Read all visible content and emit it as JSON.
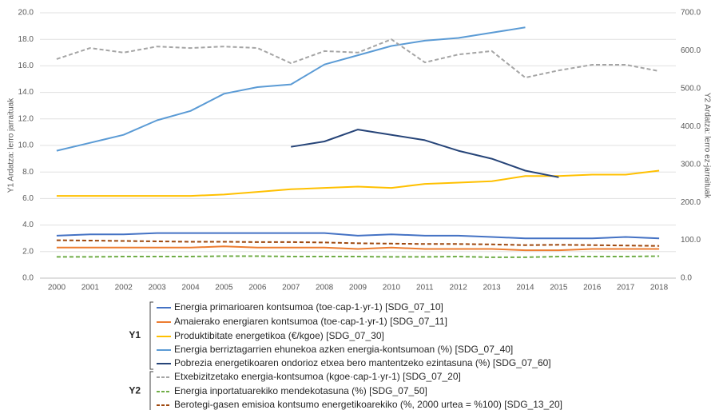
{
  "chart_data": {
    "type": "line",
    "y_label": "Y1 Ardatza: lerro jarraituak",
    "y2_label": "Y2 Ardatza: lerro ez-jarraituak",
    "categories": [
      "2000",
      "2001",
      "2002",
      "2003",
      "2004",
      "2005",
      "2006",
      "2007",
      "2008",
      "2009",
      "2010",
      "2011",
      "2012",
      "2013",
      "2014",
      "2015",
      "2016",
      "2017",
      "2018"
    ],
    "ylim": [
      0,
      20
    ],
    "yticks": [
      {
        "value": 0,
        "label": "0.0"
      },
      {
        "value": 2,
        "label": "2.0"
      },
      {
        "value": 4,
        "label": "4.0"
      },
      {
        "value": 6,
        "label": "6.0"
      },
      {
        "value": 8,
        "label": "8.0"
      },
      {
        "value": 10,
        "label": "10.0"
      },
      {
        "value": 12,
        "label": "12.0"
      },
      {
        "value": 14,
        "label": "14.0"
      },
      {
        "value": 16,
        "label": "16.0"
      },
      {
        "value": 18,
        "label": "18.0"
      },
      {
        "value": 20,
        "label": "20.0"
      }
    ],
    "y2lim": [
      0,
      700
    ],
    "y2ticks": [
      {
        "value": 0,
        "label": "0.0"
      },
      {
        "value": 100,
        "label": "100.0"
      },
      {
        "value": 200,
        "label": "200.0"
      },
      {
        "value": 300,
        "label": "300.0"
      },
      {
        "value": 400,
        "label": "400.0"
      },
      {
        "value": 500,
        "label": "500.0"
      },
      {
        "value": 600,
        "label": "600.0"
      },
      {
        "value": 700,
        "label": "700.0"
      }
    ],
    "grid": true,
    "legend_groups": [
      "Y1",
      "Y2"
    ],
    "series": [
      {
        "name": "Energia primarioaren kontsumoa (toe·cap-1·yr-1) [SDG_07_10]",
        "color": "#4472c4",
        "values": [
          3.2,
          3.3,
          3.3,
          3.4,
          3.4,
          3.4,
          3.4,
          3.4,
          3.4,
          3.2,
          3.3,
          3.2,
          3.2,
          3.1,
          3.0,
          3.0,
          3.0,
          3.1,
          3.0
        ]
      },
      {
        "name": "Amaierako energiaren kontsumoa (toe·cap-1·yr-1) [SDG_07_11]",
        "color": "#ed7d31",
        "values": [
          2.3,
          2.3,
          2.3,
          2.3,
          2.3,
          2.4,
          2.3,
          2.3,
          2.3,
          2.2,
          2.3,
          2.2,
          2.2,
          2.2,
          2.1,
          2.1,
          2.2,
          2.2,
          2.2
        ]
      },
      {
        "name": "Produktibitate energetikoa (€/kgoe) [SDG_07_30]",
        "color": "#ffc000",
        "values": [
          6.2,
          6.2,
          6.2,
          6.2,
          6.2,
          6.3,
          6.5,
          6.7,
          6.8,
          6.9,
          6.8,
          7.1,
          7.2,
          7.3,
          7.7,
          7.7,
          7.8,
          7.8,
          8.1
        ]
      },
      {
        "name": "Energia berriztagarrien ehunekoa azken energia-kontsumoan (%) [SDG_07_40]",
        "color": "#5b9bd5",
        "values": [
          9.6,
          10.2,
          10.8,
          11.9,
          12.6,
          13.9,
          14.4,
          14.6,
          16.1,
          16.8,
          17.5,
          17.9,
          18.1,
          18.5,
          18.9,
          null,
          null,
          null,
          null
        ]
      },
      {
        "name": "Pobrezia energetikoaren ondorioz etxea bero mantentzeko ezintasuna (%) [SDG_07_60]",
        "color": "#264478",
        "values": [
          null,
          null,
          null,
          null,
          null,
          null,
          null,
          9.9,
          10.3,
          11.2,
          10.8,
          10.4,
          9.6,
          9.0,
          8.1,
          7.6,
          null,
          null,
          null
        ]
      },
      {
        "name": "Etxebizitzetako energia-kontsumoa (kgoe·cap-1·yr-1) [SDG_07_20]",
        "color": "#a5a5a5",
        "dashed": true,
        "axis": "y2",
        "values": [
          578,
          607,
          595,
          611,
          607,
          611,
          607,
          567,
          599,
          595,
          630,
          569,
          590,
          599,
          529,
          548,
          563,
          563,
          546
        ]
      },
      {
        "name": "Energia inportatuarekiko mendekotasuna (%) [SDG_07_50]",
        "color": "#70ad47",
        "dashed": true,
        "axis": "y2",
        "values": [
          56,
          56,
          57,
          57,
          57,
          58,
          58,
          57,
          57,
          57,
          56,
          56,
          57,
          55,
          55,
          57,
          57,
          57,
          58
        ]
      },
      {
        "name": "Berotegi-gasen emisioa kontsumo energetikoarekiko (%, 2000 urtea = %100) [SDG_13_20]",
        "color": "#9e480e",
        "dashed": true,
        "axis": "y2",
        "values": [
          100,
          99,
          98,
          97,
          96,
          96,
          95,
          95,
          94,
          92,
          91,
          90,
          90,
          89,
          87,
          88,
          87,
          86,
          85
        ]
      }
    ]
  }
}
